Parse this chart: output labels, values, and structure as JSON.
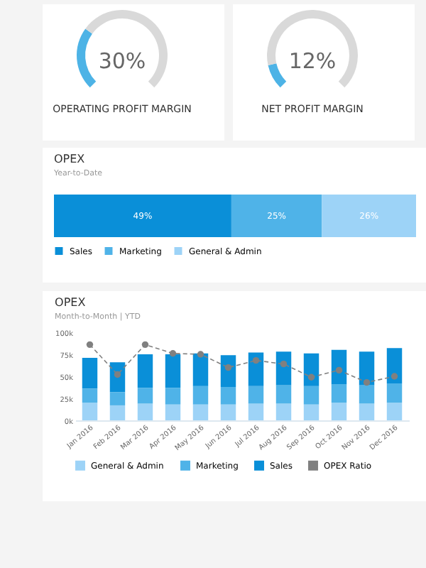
{
  "chart_data": [
    {
      "type": "donut",
      "title": "OPERATING PROFIT MARGIN",
      "categories": [
        null,
        null
      ],
      "values": [
        30,
        70
      ],
      "colors": [
        "#4db3e6",
        "#d9d9d9"
      ],
      "annotations": [
        "30%"
      ]
    },
    {
      "type": "donut",
      "title": "NET PROFIT MARGIN",
      "categories": [
        null,
        null
      ],
      "values": [
        12,
        88
      ],
      "colors": [
        "#4db3e6",
        "#d9d9d9"
      ],
      "annotations": [
        "12%"
      ]
    },
    {
      "type": "bar",
      "orientation": "horizontal",
      "stacked": true,
      "title": "OPEX",
      "subtitle": "Year-to-Date",
      "categories": [
        null
      ],
      "xlim": [
        0,
        100
      ],
      "tick_labels": false,
      "legend": "bottom",
      "series": [
        {
          "name": "Sales",
          "color": "#0a8fd8",
          "values": [
            49
          ],
          "value_labels": [
            "49%"
          ]
        },
        {
          "name": "Marketing",
          "color": "#4fb3e8",
          "values": [
            25
          ],
          "value_labels": [
            "25%"
          ]
        },
        {
          "name": "General & Admin",
          "color": "#9dd3f7",
          "values": [
            26
          ],
          "value_labels": [
            "26%"
          ]
        }
      ]
    },
    {
      "type": "bar",
      "stacked": true,
      "title": "OPEX",
      "subtitle": "Month-to-Month | YTD",
      "categories": [
        "Jan 2016",
        "Feb 2016",
        "Mar 2016",
        "Apr 2016",
        "May 2016",
        "Jun 2016",
        "Jul 2016",
        "Aug 2016",
        "Sep 2016",
        "Oct 2016",
        "Nov 2016",
        "Dec 2016"
      ],
      "ylim": [
        0,
        100
      ],
      "yticks": [
        {
          "value": 0,
          "label": "0k"
        },
        {
          "value": 25,
          "label": "25k"
        },
        {
          "value": 50,
          "label": "50k"
        },
        {
          "value": 75,
          "label": "75k"
        },
        {
          "value": 100,
          "label": "100k"
        }
      ],
      "legend": "bottom",
      "marker": "circle",
      "line_style": "dashed",
      "series": [
        {
          "name": "General & Admin",
          "color": "#9dd3f7",
          "values": [
            20,
            17,
            19,
            18,
            18,
            18,
            19,
            19,
            18,
            20,
            19,
            20
          ]
        },
        {
          "name": "Marketing",
          "color": "#4fb3e8",
          "values": [
            16,
            15,
            18,
            19,
            21,
            20,
            20,
            21,
            21,
            21,
            21,
            22
          ]
        },
        {
          "name": "Sales",
          "color": "#0a8fd8",
          "values": [
            35,
            34,
            38,
            38,
            37,
            36,
            38,
            38,
            37,
            39,
            38,
            40
          ]
        },
        {
          "name": "OPEX Ratio",
          "type": "line",
          "color": "#808080",
          "values": [
            86,
            52,
            86,
            76,
            75,
            60,
            68,
            64,
            49,
            57,
            43,
            50
          ]
        }
      ]
    }
  ]
}
